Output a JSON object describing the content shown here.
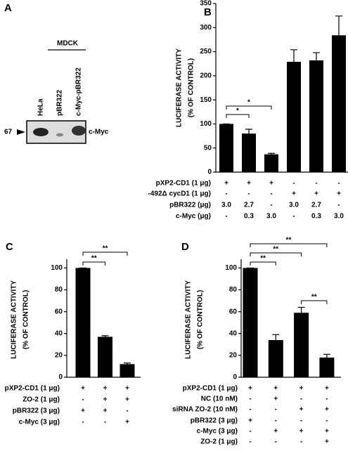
{
  "blot": {
    "label": "A",
    "group": "MDCK",
    "lanes": [
      "HeLa",
      "pBR322",
      "c-Myc-pBR322"
    ],
    "marker": "67",
    "band": "c-Myc"
  },
  "chart_data": [
    {
      "type": "bar",
      "label": "B",
      "ylabel": [
        "LUCIFERASE ACTIVITY",
        "(% OF CONTROL)"
      ],
      "values": [
        100,
        80,
        37,
        229,
        232,
        284
      ],
      "errors": [
        0,
        9,
        2,
        25,
        16,
        40
      ],
      "color": "#000000",
      "ylim": [
        0,
        350
      ],
      "yticks": [
        0,
        50,
        100,
        150,
        200,
        250,
        300,
        350
      ],
      "annotations": [
        "*",
        "*"
      ],
      "conditions": [
        {
          "label": "pXP2-CD1 (1 μg)",
          "values": [
            "+",
            "+",
            "+",
            "-",
            "-",
            "-"
          ]
        },
        {
          "label": "-492Δ cycD1 (1 μg)",
          "values": [
            "-",
            "-",
            "-",
            "+",
            "+",
            "+"
          ]
        },
        {
          "label": "pBR322 (μg)",
          "values": [
            "3.0",
            "2.7",
            "-",
            "3.0",
            "2.7",
            "-"
          ]
        },
        {
          "label": "c-Myc (μg)",
          "values": [
            "-",
            "0.3",
            "3.0",
            "-",
            "0.3",
            "3.0"
          ]
        }
      ]
    },
    {
      "type": "bar",
      "label": "C",
      "ylabel": [
        "LUCIFERASE ACTIVITY",
        "(% OF CONTROL)"
      ],
      "values": [
        100,
        37,
        12
      ],
      "errors": [
        0,
        1,
        1
      ],
      "color": "#000000",
      "ylim": [
        0,
        108
      ],
      "yticks": [
        0,
        20,
        40,
        60,
        80,
        100
      ],
      "annotations": [
        "**",
        "**"
      ],
      "conditions": [
        {
          "label": "pXP2-CD1 (1 μg)",
          "values": [
            "+",
            "+",
            "+"
          ]
        },
        {
          "label": "ZO-2 (1 μg)",
          "values": [
            "-",
            "+",
            "+"
          ]
        },
        {
          "label": "pBR322 (3 μg)",
          "values": [
            "+",
            "+",
            "-"
          ]
        },
        {
          "label": "c-Myc (3 μg)",
          "values": [
            "-",
            "-",
            "+"
          ]
        }
      ]
    },
    {
      "type": "bar",
      "label": "D",
      "ylabel": [
        "LUCIFERASE ACTIVITY",
        "(% OF CONTROL)"
      ],
      "values": [
        100,
        34,
        59,
        18
      ],
      "errors": [
        0,
        5,
        5,
        3
      ],
      "color": "#000000",
      "ylim": [
        0,
        108
      ],
      "yticks": [
        0,
        20,
        40,
        60,
        80,
        100
      ],
      "annotations": [
        "**",
        "**",
        "**",
        "**"
      ],
      "conditions": [
        {
          "label": "pXP2-CD1 (1 μg)",
          "values": [
            "+",
            "+",
            "+",
            "+"
          ]
        },
        {
          "label": "NC (10 nM)",
          "values": [
            "-",
            "+",
            "-",
            "-"
          ]
        },
        {
          "label": "siRNA ZO-2 (10 nM)",
          "values": [
            "-",
            "-",
            "+",
            "+"
          ]
        },
        {
          "label": "pBR322 (3 μg)",
          "values": [
            "+",
            "-",
            "-",
            "-"
          ]
        },
        {
          "label": "c-Myc (3 μg)",
          "values": [
            "-",
            "+",
            "+",
            "+"
          ]
        },
        {
          "label": "ZO-2 (1 μg)",
          "values": [
            "-",
            "-",
            "-",
            "+"
          ]
        }
      ]
    }
  ]
}
